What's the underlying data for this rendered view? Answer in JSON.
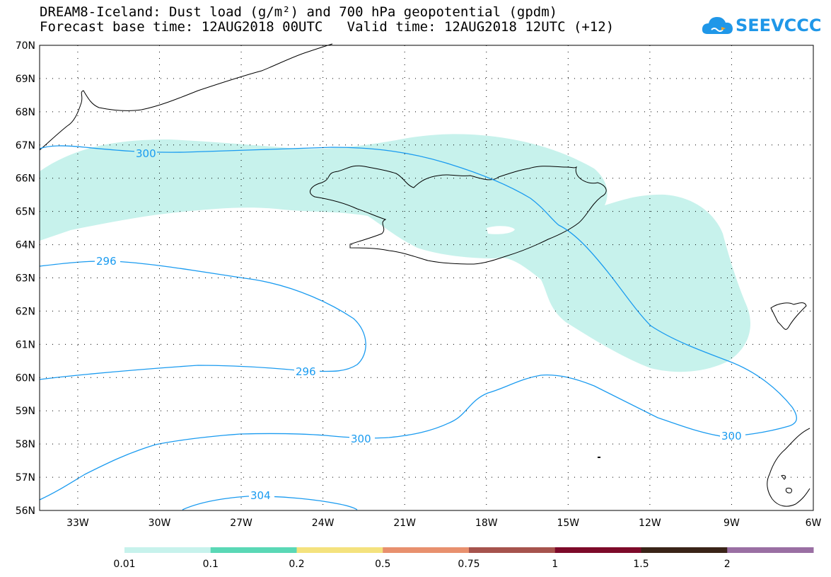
{
  "title": {
    "line1": "DREAM8-Iceland: Dust load (g/m²) and 700 hPa geopotential (gpdm)",
    "line2": "Forecast base time: 12AUG2018 00UTC   Valid time: 12AUG2018 12UTC (+12)"
  },
  "logo": {
    "text": "SEEVCCC",
    "icon": "cloud-icon",
    "color": "#1f97e8"
  },
  "map": {
    "lon_range": [
      -34.4,
      -6.0
    ],
    "lat_range": [
      56,
      70
    ],
    "lat_labels": [
      "70N",
      "69N",
      "68N",
      "67N",
      "66N",
      "65N",
      "64N",
      "63N",
      "62N",
      "61N",
      "60N",
      "59N",
      "58N",
      "57N",
      "56N"
    ],
    "lon_labels": [
      "33W",
      "30W",
      "27W",
      "24W",
      "21W",
      "18W",
      "15W",
      "12W",
      "9W",
      "6W"
    ],
    "contour_color": "#1a9bf0",
    "contours": [
      {
        "label": "300",
        "label_lon": -30.2,
        "label_lat": 66.8
      },
      {
        "label": "296",
        "label_lon": -30.7,
        "label_lat": 63.5
      },
      {
        "label": "296",
        "label_lon": -23.7,
        "label_lat": 60.15
      },
      {
        "label": "300",
        "label_lon": -22.3,
        "label_lat": 58.2
      },
      {
        "label": "300",
        "label_lon": -9.0,
        "label_lat": 58.25
      },
      {
        "label": "304",
        "label_lon": -26.0,
        "label_lat": 56.4
      }
    ]
  },
  "legend": {
    "colors": [
      "#c7f2ec",
      "#5ad8b6",
      "#f4e27e",
      "#e8906e",
      "#a6534d",
      "#7d0a2a",
      "#3a2418",
      "#9a6fa3"
    ],
    "labels": [
      "0.01",
      "0.1",
      "0.2",
      "0.5",
      "0.75",
      "1",
      "1.5",
      "2"
    ]
  }
}
